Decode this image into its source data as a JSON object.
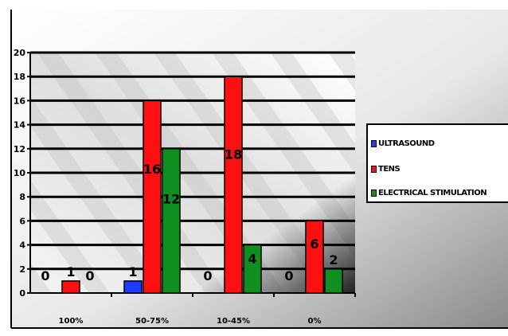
{
  "chart_data": {
    "type": "bar",
    "title": "",
    "xlabel": "",
    "ylabel": "",
    "categories": [
      "100%",
      "50-75%",
      "10-45%",
      "0%"
    ],
    "ylim": [
      0,
      20
    ],
    "yticks": [
      0,
      2,
      4,
      6,
      8,
      10,
      12,
      14,
      16,
      18,
      20
    ],
    "grid": true,
    "legend_position": "right",
    "series": [
      {
        "name": "ULTRASOUND",
        "color": "#1d3cff",
        "values": [
          0,
          1,
          0,
          0
        ]
      },
      {
        "name": "TENS",
        "color": "#ff1010",
        "values": [
          1,
          16,
          18,
          6
        ]
      },
      {
        "name": "ELECTRICAL STIMULATION",
        "color": "#0f8f1f",
        "values": [
          0,
          12,
          4,
          2
        ]
      }
    ],
    "data_labels": [
      [
        "0",
        "1",
        "0",
        "0"
      ],
      [
        "1",
        "16",
        "18",
        "6"
      ],
      [
        "0",
        "12",
        "4",
        "2"
      ]
    ]
  }
}
